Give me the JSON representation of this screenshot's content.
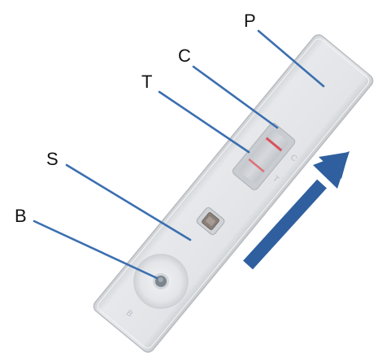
{
  "diagram": {
    "labels": {
      "p": "P",
      "c": "C",
      "t": "T",
      "s": "S",
      "b": "B"
    },
    "colors": {
      "leader_line": "#3b6fb0",
      "arrow": "#2f5f9e",
      "cassette": "#e3e5e8",
      "line_red": "#d9535b"
    },
    "icons": {
      "flow_direction": "arrow-up-right-icon"
    }
  }
}
